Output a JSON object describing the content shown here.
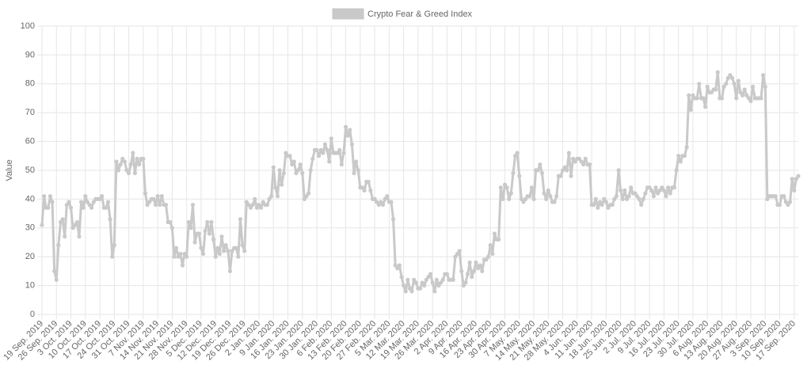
{
  "chart_data": {
    "type": "line",
    "legend": "Crypto Fear & Greed Index",
    "y_label": "Value",
    "color": "#c9c9c9",
    "grid": true,
    "ylim": [
      0,
      100
    ],
    "yticks": [
      0,
      10,
      20,
      30,
      40,
      50,
      60,
      70,
      80,
      90,
      100
    ],
    "categories": [
      "19 Sep. 2019",
      null,
      null,
      null,
      null,
      null,
      null,
      "26 Sep. 2019",
      null,
      null,
      null,
      null,
      null,
      null,
      "3 Oct. 2019",
      null,
      null,
      null,
      null,
      null,
      null,
      "10 Oct. 2019",
      null,
      null,
      null,
      null,
      null,
      null,
      "17 Oct. 2019",
      null,
      null,
      null,
      null,
      null,
      null,
      "24 Oct. 2019",
      null,
      null,
      null,
      null,
      null,
      null,
      "31 Oct. 2019",
      null,
      null,
      null,
      null,
      null,
      null,
      "7 Nov. 2019",
      null,
      null,
      null,
      null,
      null,
      null,
      "14 Nov. 2019",
      null,
      null,
      null,
      null,
      null,
      null,
      "21 Nov. 2019",
      null,
      null,
      null,
      null,
      null,
      null,
      "28 Nov. 2019",
      null,
      null,
      null,
      null,
      null,
      null,
      "5 Dec. 2019",
      null,
      null,
      null,
      null,
      null,
      null,
      "12 Dec. 2019",
      null,
      null,
      null,
      null,
      null,
      null,
      "19 Dec. 2019",
      null,
      null,
      null,
      null,
      null,
      null,
      "26 Dec. 2019",
      null,
      null,
      null,
      null,
      null,
      null,
      "2 Jan. 2020",
      null,
      null,
      null,
      null,
      null,
      null,
      "9 Jan. 2020",
      null,
      null,
      null,
      null,
      null,
      null,
      "16 Jan. 2020",
      null,
      null,
      null,
      null,
      null,
      null,
      "23 Jan. 2020",
      null,
      null,
      null,
      null,
      null,
      null,
      "30 Jan. 2020",
      null,
      null,
      null,
      null,
      null,
      null,
      "6 Feb. 2020",
      null,
      null,
      null,
      null,
      null,
      null,
      "13 Feb. 2020",
      null,
      null,
      null,
      null,
      null,
      null,
      "20 Feb. 2020",
      null,
      null,
      null,
      null,
      null,
      null,
      "27 Feb. 2020",
      null,
      null,
      null,
      null,
      null,
      null,
      "5 Mar. 2020",
      null,
      null,
      null,
      null,
      null,
      null,
      "12 Mar. 2020",
      null,
      null,
      null,
      null,
      null,
      null,
      "19 Mar. 2020",
      null,
      null,
      null,
      null,
      null,
      null,
      "26 Mar. 2020",
      null,
      null,
      null,
      null,
      null,
      null,
      "2 Apr. 2020",
      null,
      null,
      null,
      null,
      null,
      null,
      "9 Apr. 2020",
      null,
      null,
      null,
      null,
      null,
      null,
      "16 Apr. 2020",
      null,
      null,
      null,
      null,
      null,
      null,
      "23 Apr. 2020",
      null,
      null,
      null,
      null,
      null,
      null,
      "30 Apr. 2020",
      null,
      null,
      null,
      null,
      null,
      null,
      "7 May. 2020",
      null,
      null,
      null,
      null,
      null,
      null,
      "14 May. 2020",
      null,
      null,
      null,
      null,
      null,
      null,
      "21 May. 2020",
      null,
      null,
      null,
      null,
      null,
      null,
      "28 May. 2020",
      null,
      null,
      null,
      null,
      null,
      null,
      "4 Jun. 2020",
      null,
      null,
      null,
      null,
      null,
      null,
      "11 Jun. 2020",
      null,
      null,
      null,
      null,
      null,
      null,
      "18 Jun. 2020",
      null,
      null,
      null,
      null,
      null,
      null,
      "25 Jun. 2020",
      null,
      null,
      null,
      null,
      null,
      null,
      "2 Jul. 2020",
      null,
      null,
      null,
      null,
      null,
      null,
      "9 Jul. 2020",
      null,
      null,
      null,
      null,
      null,
      null,
      "16 Jul. 2020",
      null,
      null,
      null,
      null,
      null,
      null,
      "23 Jul. 2020",
      null,
      null,
      null,
      null,
      null,
      null,
      "30 Jul. 2020",
      null,
      null,
      null,
      null,
      null,
      null,
      "6 Aug. 2020",
      null,
      null,
      null,
      null,
      null,
      null,
      "13 Aug. 2020",
      null,
      null,
      null,
      null,
      null,
      null,
      "20 Aug. 2020",
      null,
      null,
      null,
      null,
      null,
      null,
      "27 Aug. 2020",
      null,
      null,
      null,
      null,
      null,
      null,
      "3 Sep. 2020",
      null,
      null,
      null,
      null,
      null,
      null,
      "10 Sep. 2020",
      null,
      null,
      null,
      null,
      null,
      null,
      "17 Sep. 2020",
      null,
      null
    ],
    "values": [
      31,
      41,
      37,
      37,
      41,
      39,
      15,
      12,
      24,
      32,
      33,
      27,
      38,
      39,
      37,
      30,
      31,
      32,
      27,
      39,
      37,
      41,
      39,
      38,
      37,
      39,
      40,
      40,
      40,
      41,
      37,
      37,
      39,
      33,
      20,
      24,
      53,
      50,
      52,
      54,
      53,
      50,
      49,
      52,
      56,
      49,
      54,
      52,
      54,
      54,
      42,
      38,
      39,
      40,
      40,
      38,
      41,
      38,
      41,
      38,
      38,
      32,
      32,
      30,
      20,
      23,
      20,
      21,
      17,
      21,
      20,
      32,
      30,
      38,
      25,
      28,
      28,
      23,
      21,
      29,
      32,
      28,
      32,
      26,
      20,
      23,
      21,
      27,
      22,
      24,
      22,
      15,
      22,
      23,
      23,
      20,
      33,
      24,
      22,
      39,
      38,
      37,
      38,
      40,
      37,
      38,
      37,
      39,
      38,
      38,
      40,
      41,
      51,
      44,
      41,
      50,
      45,
      49,
      56,
      55,
      55,
      52,
      53,
      49,
      50,
      52,
      49,
      40,
      41,
      42,
      50,
      54,
      57,
      57,
      55,
      57,
      56,
      59,
      57,
      53,
      61,
      56,
      56,
      56,
      57,
      52,
      56,
      65,
      62,
      64,
      59,
      49,
      53,
      50,
      44,
      44,
      43,
      46,
      46,
      43,
      40,
      40,
      39,
      38,
      39,
      38,
      40,
      41,
      39,
      39,
      33,
      17,
      16,
      17,
      13,
      10,
      8,
      12,
      9,
      8,
      12,
      11,
      9,
      9,
      11,
      10,
      12,
      13,
      14,
      11,
      8,
      12,
      10,
      11,
      12,
      14,
      14,
      12,
      12,
      12,
      20,
      21,
      22,
      15,
      10,
      11,
      14,
      18,
      13,
      15,
      18,
      16,
      17,
      15,
      19,
      19,
      20,
      24,
      21,
      28,
      26,
      26,
      44,
      40,
      45,
      44,
      40,
      42,
      49,
      55,
      56,
      48,
      40,
      39,
      40,
      41,
      41,
      44,
      40,
      50,
      50,
      52,
      49,
      42,
      40,
      43,
      41,
      39,
      39,
      41,
      48,
      48,
      50,
      51,
      50,
      56,
      48,
      54,
      53,
      54,
      54,
      53,
      52,
      54,
      52,
      52,
      38,
      38,
      40,
      37,
      39,
      38,
      40,
      39,
      37,
      38,
      38,
      40,
      41,
      50,
      43,
      40,
      43,
      40,
      41,
      44,
      42,
      42,
      41,
      40,
      38,
      40,
      42,
      44,
      44,
      43,
      41,
      44,
      42,
      43,
      44,
      43,
      41,
      44,
      42,
      44,
      44,
      50,
      55,
      53,
      55,
      55,
      58,
      76,
      71,
      76,
      75,
      75,
      80,
      75,
      75,
      72,
      79,
      77,
      77,
      78,
      78,
      84,
      75,
      75,
      79,
      80,
      82,
      83,
      82,
      80,
      75,
      81,
      77,
      76,
      78,
      76,
      75,
      74,
      79,
      75,
      75,
      75,
      75,
      83,
      79,
      40,
      41,
      41,
      41,
      41,
      38,
      38,
      41,
      41,
      39,
      38,
      39,
      47,
      43,
      47,
      48
    ]
  }
}
